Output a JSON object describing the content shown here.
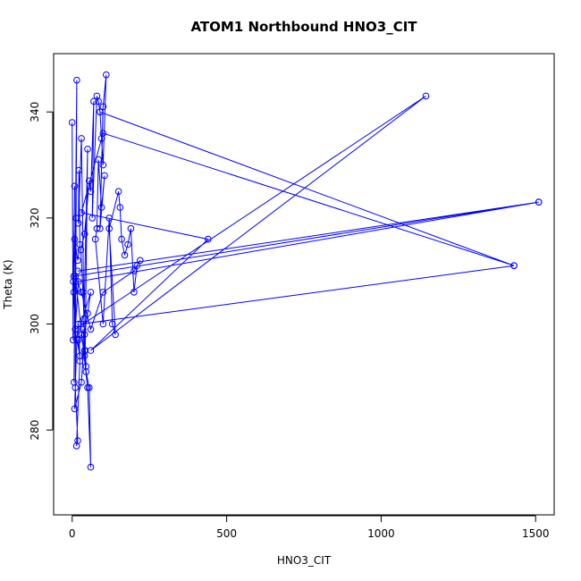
{
  "chart_data": {
    "type": "line",
    "title": "ATOM1 Northbound HNO3_CIT",
    "xlabel": "HNO3_CIT",
    "ylabel": "Theta (K)",
    "xlim": [
      -60,
      1560
    ],
    "ylim": [
      264,
      351
    ],
    "xticks": [
      0,
      500,
      1000,
      1500
    ],
    "yticks": [
      280,
      300,
      320,
      340
    ],
    "grid": false,
    "legend": "none",
    "color": "#0000ff",
    "markers": "open-circle",
    "series": [
      {
        "x": [
          0,
          3,
          8,
          4,
          12,
          6,
          15,
          10,
          18,
          14,
          25,
          20,
          30,
          40,
          35,
          45,
          55,
          60,
          50,
          12,
          8,
          18,
          25,
          22,
          20,
          30,
          40,
          45,
          38,
          50,
          42,
          35,
          28,
          40,
          55,
          60,
          70,
          65,
          80,
          85,
          90,
          95,
          100,
          110,
          100,
          90,
          105,
          95,
          85,
          80,
          75,
          100,
          120,
          130,
          140,
          120,
          150,
          155,
          160,
          170,
          180,
          190,
          200,
          210,
          220,
          200,
          100,
          60,
          30,
          10,
          5,
          12,
          25,
          20,
          15,
          8,
          30,
          40,
          50,
          60,
          28,
          1430,
          90,
          1430,
          100,
          30,
          440,
          60,
          1145,
          10,
          20,
          1510,
          5,
          1510,
          18
        ],
        "y": [
          338,
          297,
          326,
          308,
          320,
          289,
          346,
          288,
          278,
          277,
          293,
          297,
          298,
          295,
          299,
          291,
          288,
          273,
          288,
          308,
          316,
          312,
          315,
          329,
          319,
          335,
          294,
          292,
          301,
          333,
          295,
          306,
          314,
          317,
          327,
          325,
          342,
          320,
          343,
          342,
          340,
          335,
          330,
          347,
          341,
          318,
          328,
          322,
          331,
          318,
          316,
          300,
          320,
          300,
          298,
          318,
          325,
          322,
          316,
          313,
          315,
          318,
          306,
          311,
          312,
          310,
          306,
          299,
          306,
          309,
          306,
          298,
          294,
          300,
          297,
          284,
          289,
          298,
          302,
          306,
          300,
          311,
          340,
          311,
          336,
          321,
          316,
          295,
          343,
          299,
          308,
          323,
          309,
          323,
          310
        ]
      }
    ]
  }
}
